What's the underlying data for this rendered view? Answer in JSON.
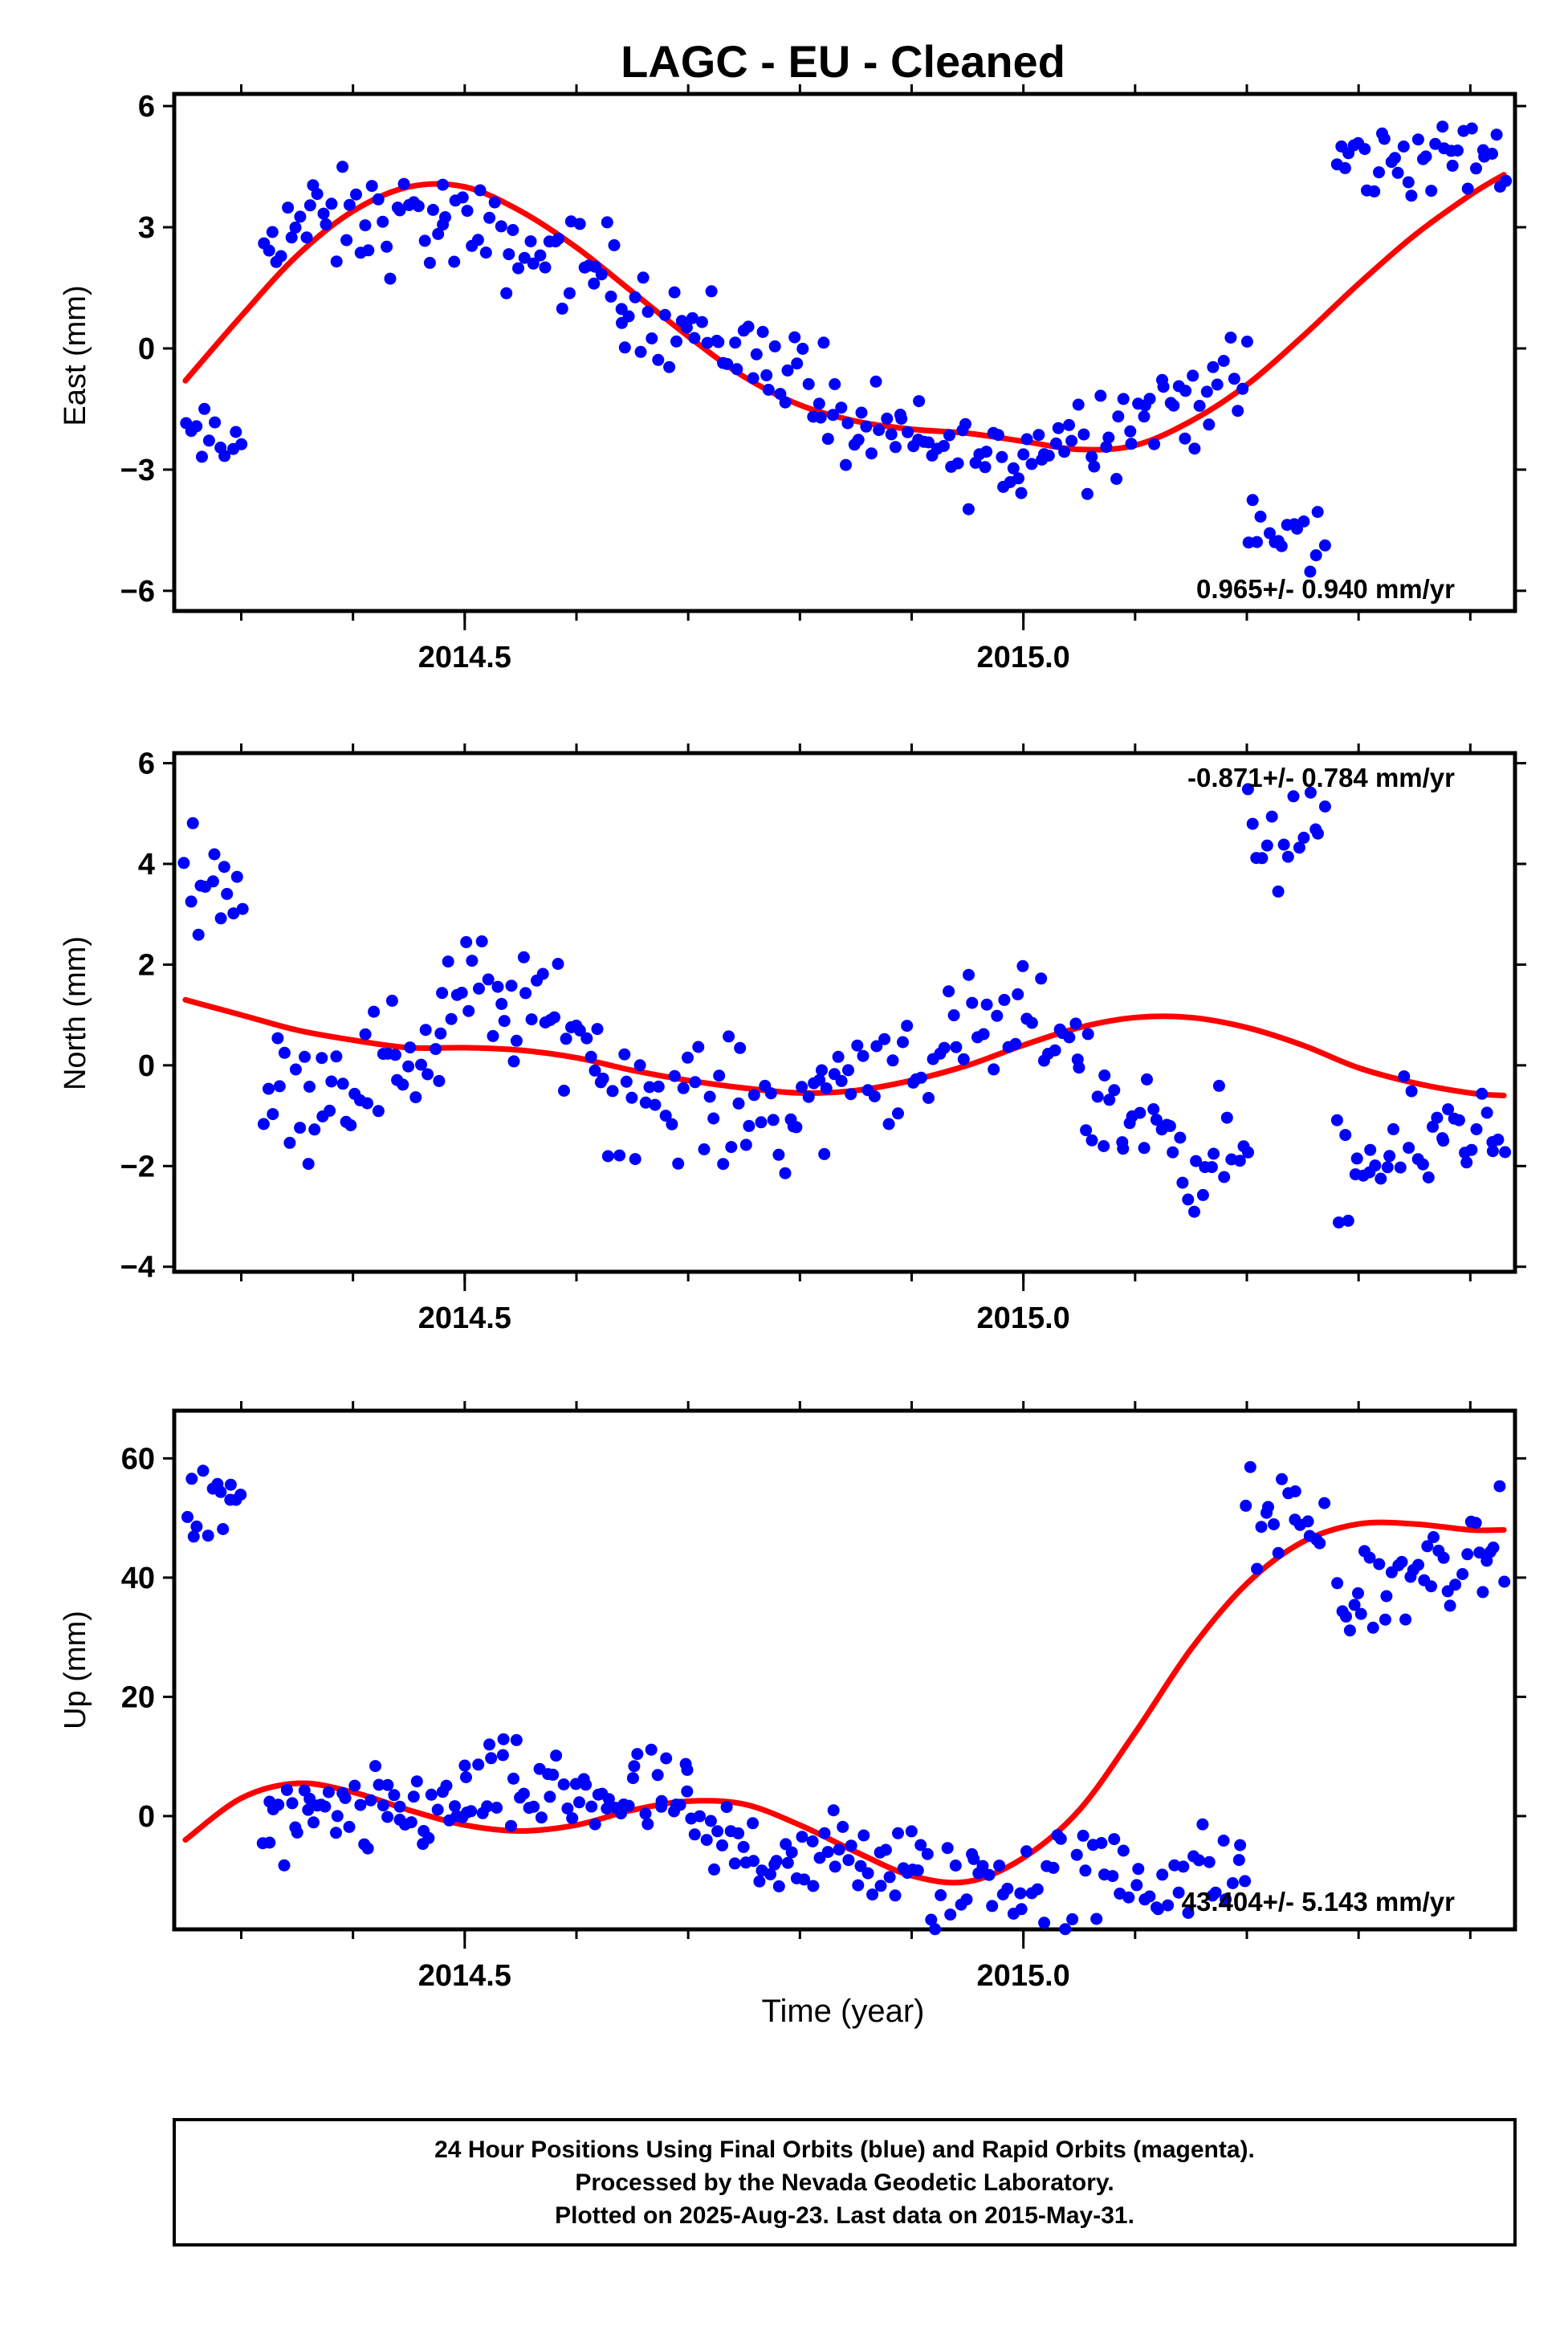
{
  "title": "LAGC  - EU - Cleaned",
  "xaxis_label": "Time (year)",
  "footer": {
    "line1": "24 Hour Positions Using Final Orbits (blue) and Rapid Orbits (magenta).",
    "line2": "Processed by the Nevada Geodetic Laboratory.",
    "line3": "Plotted on 2025-Aug-23. Last data on 2015-May-31."
  },
  "colors": {
    "points": "#0000ff",
    "fit": "#ff0000",
    "frame": "#000000"
  },
  "chart_data": [
    {
      "type": "scatter",
      "panel": "east",
      "ylabel": "East (mm)",
      "xlim": [
        2014.24,
        2015.44
      ],
      "ylim": [
        -6.5,
        6.3
      ],
      "yticks": [
        -6,
        -3,
        0,
        3,
        6
      ],
      "yticklabels": [
        "−6",
        "−3",
        "0",
        "3",
        "6"
      ],
      "xticks": [
        2014.5,
        2015.0
      ],
      "xticklabels": [
        "2014.5",
        "2015.0"
      ],
      "rate_text": "0.965+/- 0.940 mm/yr",
      "rate_position": "bottom-right",
      "fit": {
        "x": [
          2014.25,
          2014.3,
          2014.35,
          2014.4,
          2014.45,
          2014.5,
          2014.55,
          2014.6,
          2014.65,
          2014.7,
          2014.75,
          2014.8,
          2014.85,
          2014.9,
          2014.95,
          2015.0,
          2015.05,
          2015.1,
          2015.15,
          2015.2,
          2015.25,
          2015.3,
          2015.35,
          2015.4,
          2015.43
        ],
        "y": [
          -0.8,
          0.8,
          2.3,
          3.4,
          4.0,
          4.0,
          3.4,
          2.5,
          1.4,
          0.3,
          -0.7,
          -1.4,
          -1.8,
          -2.0,
          -2.1,
          -2.3,
          -2.5,
          -2.4,
          -1.8,
          -0.9,
          0.3,
          1.6,
          2.8,
          3.8,
          4.3
        ]
      },
      "segments": [
        {
          "x0": 2014.25,
          "x1": 2014.3,
          "y0": -2.2,
          "y1": -2.5,
          "spread": 0.9,
          "n": 12
        },
        {
          "x0": 2014.32,
          "x1": 2014.48,
          "y0": 3.0,
          "y1": 3.2,
          "spread": 1.4,
          "n": 40
        },
        {
          "x0": 2014.48,
          "x1": 2014.64,
          "y0": 3.0,
          "y1": 1.8,
          "spread": 1.3,
          "n": 38
        },
        {
          "x0": 2014.64,
          "x1": 2014.82,
          "y0": 1.2,
          "y1": -0.8,
          "spread": 1.3,
          "n": 44
        },
        {
          "x0": 2014.82,
          "x1": 2015.0,
          "y0": -1.8,
          "y1": -3.0,
          "spread": 1.2,
          "n": 46
        },
        {
          "x0": 2015.0,
          "x1": 2015.2,
          "y0": -2.5,
          "y1": -0.8,
          "spread": 1.4,
          "n": 50
        },
        {
          "x0": 2015.2,
          "x1": 2015.27,
          "y0": -4.5,
          "y1": -4.8,
          "spread": 1.0,
          "n": 16
        },
        {
          "x0": 2015.28,
          "x1": 2015.43,
          "y0": 4.6,
          "y1": 4.8,
          "spread": 1.1,
          "n": 38
        }
      ]
    },
    {
      "type": "scatter",
      "panel": "north",
      "ylabel": "North (mm)",
      "xlim": [
        2014.24,
        2015.44
      ],
      "ylim": [
        -4.1,
        6.2
      ],
      "yticks": [
        -4,
        -2,
        0,
        2,
        4,
        6
      ],
      "yticklabels": [
        "−4",
        "−2",
        "0",
        "2",
        "4",
        "6"
      ],
      "xticks": [
        2014.5,
        2015.0
      ],
      "xticklabels": [
        "2014.5",
        "2015.0"
      ],
      "rate_text": "-0.871+/- 0.784 mm/yr",
      "rate_position": "top-right",
      "fit": {
        "x": [
          2014.25,
          2014.3,
          2014.35,
          2014.4,
          2014.45,
          2014.5,
          2014.55,
          2014.6,
          2014.65,
          2014.7,
          2014.75,
          2014.8,
          2014.85,
          2014.9,
          2014.95,
          2015.0,
          2015.05,
          2015.1,
          2015.15,
          2015.2,
          2015.25,
          2015.3,
          2015.35,
          2015.4,
          2015.43
        ],
        "y": [
          1.3,
          1.0,
          0.7,
          0.5,
          0.35,
          0.35,
          0.3,
          0.15,
          -0.1,
          -0.3,
          -0.45,
          -0.55,
          -0.5,
          -0.3,
          0.0,
          0.4,
          0.75,
          0.95,
          0.95,
          0.75,
          0.4,
          -0.05,
          -0.35,
          -0.55,
          -0.6
        ]
      },
      "segments": [
        {
          "x0": 2014.25,
          "x1": 2014.3,
          "y0": 3.8,
          "y1": 3.6,
          "spread": 1.0,
          "n": 14
        },
        {
          "x0": 2014.32,
          "x1": 2014.48,
          "y0": -0.7,
          "y1": 0.4,
          "spread": 1.4,
          "n": 42
        },
        {
          "x0": 2014.48,
          "x1": 2014.62,
          "y0": 1.6,
          "y1": 0.6,
          "spread": 1.3,
          "n": 36
        },
        {
          "x0": 2014.62,
          "x1": 2014.82,
          "y0": -0.5,
          "y1": -1.0,
          "spread": 1.3,
          "n": 48
        },
        {
          "x0": 2014.82,
          "x1": 2015.05,
          "y0": -0.2,
          "y1": 0.9,
          "spread": 1.3,
          "n": 52
        },
        {
          "x0": 2015.05,
          "x1": 2015.2,
          "y0": -0.6,
          "y1": -2.0,
          "spread": 1.4,
          "n": 38
        },
        {
          "x0": 2015.2,
          "x1": 2015.27,
          "y0": 4.6,
          "y1": 4.4,
          "spread": 1.1,
          "n": 16
        },
        {
          "x0": 2015.28,
          "x1": 2015.43,
          "y0": -2.3,
          "y1": -0.9,
          "spread": 1.3,
          "n": 38
        }
      ]
    },
    {
      "type": "scatter",
      "panel": "up",
      "ylabel": "Up (mm)",
      "xlim": [
        2014.24,
        2015.44
      ],
      "ylim": [
        -19,
        68
      ],
      "yticks": [
        0,
        20,
        40,
        60
      ],
      "yticklabels": [
        "0",
        "20",
        "40",
        "60"
      ],
      "xticks": [
        2014.5,
        2015.0
      ],
      "xticklabels": [
        "2014.5",
        "2015.0"
      ],
      "rate_text": "43.404+/- 5.143 mm/yr",
      "rate_position": "bottom-right",
      "fit": {
        "x": [
          2014.25,
          2014.3,
          2014.35,
          2014.4,
          2014.45,
          2014.5,
          2014.55,
          2014.6,
          2014.65,
          2014.7,
          2014.75,
          2014.8,
          2014.85,
          2014.9,
          2014.95,
          2015.0,
          2015.05,
          2015.1,
          2015.15,
          2015.2,
          2015.25,
          2015.3,
          2015.35,
          2015.4,
          2015.43
        ],
        "y": [
          -4,
          3,
          5.5,
          4,
          1,
          -1.5,
          -2.5,
          -1.5,
          1,
          2.5,
          2,
          -1.5,
          -6,
          -10,
          -11,
          -7,
          1,
          14,
          28,
          39,
          46,
          49,
          49,
          48,
          48
        ]
      },
      "segments": [
        {
          "x0": 2014.25,
          "x1": 2014.3,
          "y0": 51,
          "y1": 52,
          "spread": 8,
          "n": 14
        },
        {
          "x0": 2014.32,
          "x1": 2014.5,
          "y0": -2,
          "y1": 2,
          "spread": 8,
          "n": 52
        },
        {
          "x0": 2014.5,
          "x1": 2014.7,
          "y0": 4,
          "y1": 3,
          "spread": 9,
          "n": 56
        },
        {
          "x0": 2014.7,
          "x1": 2014.9,
          "y0": -4,
          "y1": -9,
          "spread": 9,
          "n": 54
        },
        {
          "x0": 2014.9,
          "x1": 2015.2,
          "y0": -11,
          "y1": -10,
          "spread": 10,
          "n": 70
        },
        {
          "x0": 2015.2,
          "x1": 2015.27,
          "y0": 50,
          "y1": 48,
          "spread": 9,
          "n": 18
        },
        {
          "x0": 2015.28,
          "x1": 2015.43,
          "y0": 36,
          "y1": 45,
          "spread": 9,
          "n": 40
        }
      ]
    }
  ]
}
